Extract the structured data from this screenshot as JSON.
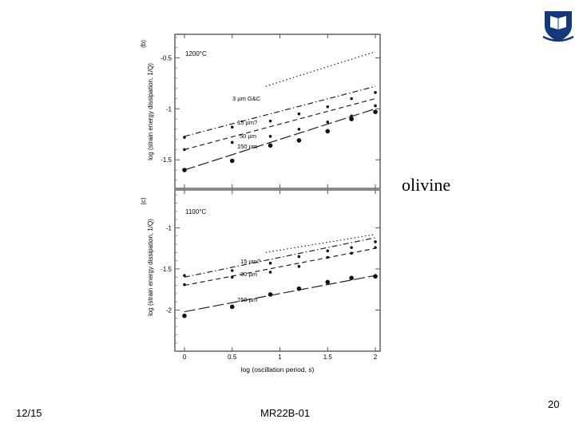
{
  "slide": {
    "date": "12/15",
    "footer": "MR22B-01",
    "page_number": "20",
    "annotation": "olivine"
  },
  "logo": {
    "icon": "university-shield-icon",
    "color": "#123a7a"
  },
  "chart_data": [
    {
      "type": "scatter",
      "panel_label": "(b)",
      "temperature_label": "1200°C",
      "ylabel": "log (strain energy dissipation, 1/Q)",
      "xlabel": "",
      "xlim": [
        -0.1,
        2.05
      ],
      "ylim": [
        -1.78,
        -0.27
      ],
      "yticks": [
        -0.5,
        -1,
        -1.5
      ],
      "ytick_labels": [
        "-0.5",
        "-1",
        "-1.5"
      ],
      "series": [
        {
          "name": "3 µm G&C",
          "style": "dotted",
          "line": [
            [
              0.85,
              -0.78
            ],
            [
              2.0,
              -0.44
            ]
          ],
          "points": []
        },
        {
          "name": "15 µm?",
          "style": "dashdot",
          "line": [
            [
              0.0,
              -1.27
            ],
            [
              2.0,
              -0.78
            ]
          ],
          "points": [
            [
              0.0,
              -1.28
            ],
            [
              0.5,
              -1.18
            ],
            [
              0.9,
              -1.12
            ],
            [
              1.2,
              -1.05
            ],
            [
              1.5,
              -0.98
            ],
            [
              1.75,
              -0.9
            ],
            [
              2.0,
              -0.84
            ]
          ]
        },
        {
          "name": "50 µm",
          "style": "dashed",
          "line": [
            [
              0.0,
              -1.4
            ],
            [
              2.0,
              -0.9
            ]
          ],
          "points": [
            [
              0.0,
              -1.4
            ],
            [
              0.5,
              -1.33
            ],
            [
              0.9,
              -1.27
            ],
            [
              1.2,
              -1.2
            ],
            [
              1.5,
              -1.13
            ],
            [
              1.75,
              -1.07
            ],
            [
              2.0,
              -0.97
            ]
          ]
        },
        {
          "name": "150 µm",
          "style": "longdash",
          "line": [
            [
              0.0,
              -1.6
            ],
            [
              2.0,
              -1.0
            ]
          ],
          "points": [
            [
              0.0,
              -1.6
            ],
            [
              0.5,
              -1.51
            ],
            [
              0.9,
              -1.36
            ],
            [
              1.2,
              -1.31
            ],
            [
              1.5,
              -1.22
            ],
            [
              1.75,
              -1.1
            ],
            [
              2.0,
              -1.03
            ]
          ]
        }
      ]
    },
    {
      "type": "scatter",
      "panel_label": "(c)",
      "temperature_label": "1100°C",
      "ylabel": "log (strain energy dissipation, 1/Q)",
      "xlabel": "log (oscillation period, s)",
      "xlim": [
        -0.1,
        2.05
      ],
      "ylim": [
        -2.5,
        -0.54
      ],
      "xticks": [
        0,
        0.5,
        1,
        1.5,
        2
      ],
      "xtick_labels": [
        "0",
        "0.5",
        "1",
        "1.5",
        "2"
      ],
      "yticks": [
        -1,
        -1.5,
        -2
      ],
      "ytick_labels": [
        "-1",
        "-1.5",
        "-2"
      ],
      "series": [
        {
          "name": "",
          "style": "dotted",
          "line": [
            [
              0.85,
              -1.3
            ],
            [
              2.0,
              -1.08
            ]
          ],
          "points": []
        },
        {
          "name": "15 µm?",
          "style": "dashdot",
          "line": [
            [
              0.0,
              -1.6
            ],
            [
              2.0,
              -1.12
            ]
          ],
          "points": [
            [
              0.0,
              -1.58
            ],
            [
              0.5,
              -1.52
            ],
            [
              0.9,
              -1.43
            ],
            [
              1.2,
              -1.35
            ],
            [
              1.5,
              -1.28
            ],
            [
              1.75,
              -1.24
            ],
            [
              2.0,
              -1.17
            ]
          ]
        },
        {
          "name": "30 µm",
          "style": "dashed",
          "line": [
            [
              0.0,
              -1.7
            ],
            [
              2.0,
              -1.25
            ]
          ],
          "points": [
            [
              0.0,
              -1.69
            ],
            [
              0.5,
              -1.6
            ],
            [
              0.9,
              -1.54
            ],
            [
              1.2,
              -1.47
            ],
            [
              1.5,
              -1.36
            ],
            [
              1.75,
              -1.31
            ],
            [
              2.0,
              -1.24
            ]
          ]
        },
        {
          "name": "150 µm",
          "style": "longdash",
          "line": [
            [
              0.0,
              -2.02
            ],
            [
              2.0,
              -1.58
            ]
          ],
          "points": [
            [
              0.0,
              -2.07
            ],
            [
              0.5,
              -1.96
            ],
            [
              0.9,
              -1.81
            ],
            [
              1.2,
              -1.74
            ],
            [
              1.5,
              -1.66
            ],
            [
              1.75,
              -1.61
            ],
            [
              2.0,
              -1.59
            ]
          ]
        }
      ]
    }
  ]
}
